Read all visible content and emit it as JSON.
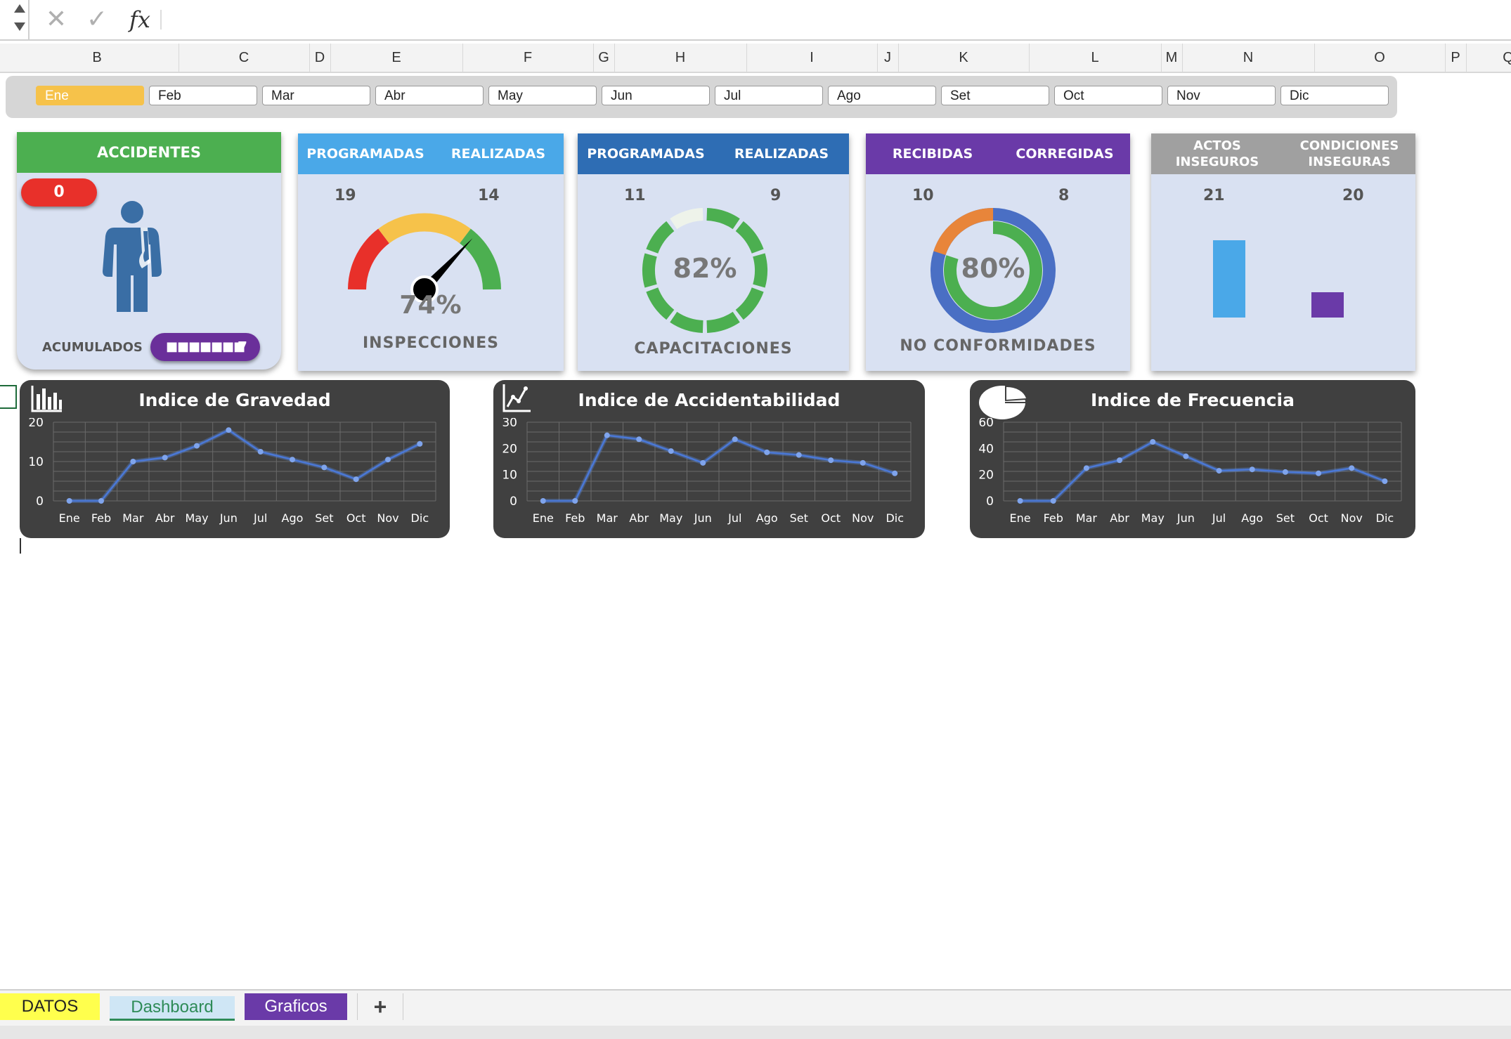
{
  "formula_bar": {
    "cancel_icon": "x-icon",
    "enter_icon": "check-icon",
    "fx_label": "fx",
    "content": ""
  },
  "columns": [
    "B",
    "C",
    "D",
    "E",
    "F",
    "G",
    "H",
    "I",
    "J",
    "K",
    "L",
    "M",
    "N",
    "O",
    "P",
    "Q"
  ],
  "months": [
    "Ene",
    "Feb",
    "Mar",
    "Abr",
    "May",
    "Jun",
    "Jul",
    "Ago",
    "Set",
    "Oct",
    "Nov",
    "Dic"
  ],
  "selected_month": "Ene",
  "cards": {
    "accidentes": {
      "title": "ACCIDENTES",
      "count": "0",
      "footer_label": "ACUMULADOS",
      "accumulated_value": "7",
      "accumulated_bar": "■■■■■■■",
      "colors": {
        "header": "#4caf50",
        "badge": "#e8302a",
        "pill": "#6a2f9a",
        "figure": "#3a6ea5"
      }
    },
    "inspecciones": {
      "left_header": "PROGRAMADAS",
      "right_header": "REALIZADAS",
      "programadas": "19",
      "realizadas": "14",
      "percent": "74%",
      "label": "INSPECCIONES",
      "gauge_fraction": 0.74,
      "colors": {
        "header": "#4aa8e8"
      }
    },
    "capacitaciones": {
      "left_header": "PROGRAMADAS",
      "right_header": "REALIZADAS",
      "programadas": "11",
      "realizadas": "9",
      "percent": "82%",
      "label": "CAPACITACIONES",
      "fraction": 0.82,
      "colors": {
        "header": "#2e6db4",
        "ring": "#4caf50"
      }
    },
    "no_conformidades": {
      "left_header": "RECIBIDAS",
      "right_header": "CORREGIDAS",
      "recibidas": "10",
      "corregidas": "8",
      "percent": "80%",
      "label": "NO CONFORMIDADES",
      "fraction": 0.8,
      "colors": {
        "header": "#6a3aa8",
        "outer": "#4a6fc4",
        "inner": "#4caf50",
        "rest": "#e8853a"
      }
    },
    "actos": {
      "left_header": "ACTOS INSEGUROS",
      "right_header_line1": "CONDICIONES",
      "right_header_line2": "INSEGURAS",
      "actos": "21",
      "condiciones": "20",
      "colors": {
        "header": "#a0a0a0",
        "bar_left": "#4aa8e8",
        "bar_right": "#6a3aa8"
      }
    }
  },
  "chart_data": [
    {
      "type": "line",
      "title": "Indice de Gravedad",
      "categories": [
        "Ene",
        "Feb",
        "Mar",
        "Abr",
        "May",
        "Jun",
        "Jul",
        "Ago",
        "Set",
        "Oct",
        "Nov",
        "Dic"
      ],
      "values": [
        0,
        0,
        10,
        11,
        14,
        18,
        12.5,
        10.5,
        8.5,
        5.5,
        10.5,
        14.5
      ],
      "ylim": [
        0,
        20
      ],
      "yticks": [
        "0",
        "10",
        "20"
      ],
      "grid": true
    },
    {
      "type": "line",
      "title": "Indice de Accidentabilidad",
      "categories": [
        "Ene",
        "Feb",
        "Mar",
        "Abr",
        "May",
        "Jun",
        "Jul",
        "Ago",
        "Set",
        "Oct",
        "Nov",
        "Dic"
      ],
      "values": [
        0,
        0,
        25,
        23.5,
        19,
        14.5,
        23.5,
        18.5,
        17.5,
        15.5,
        14.5,
        10.5
      ],
      "ylim": [
        0,
        30
      ],
      "yticks": [
        "0",
        "10",
        "20",
        "30"
      ],
      "grid": true
    },
    {
      "type": "line",
      "title": "Indice de Frecuencia",
      "categories": [
        "Ene",
        "Feb",
        "Mar",
        "Abr",
        "May",
        "Jun",
        "Jul",
        "Ago",
        "Set",
        "Oct",
        "Nov",
        "Dic"
      ],
      "values": [
        0,
        0,
        25,
        31,
        45,
        34,
        23,
        24,
        22,
        21,
        25,
        15
      ],
      "ylim": [
        0,
        60
      ],
      "yticks": [
        "0",
        "20",
        "40",
        "60"
      ],
      "grid": true
    }
  ],
  "chart_icons": [
    "bar-chart-icon",
    "line-chart-icon",
    "pie-chart-icon"
  ],
  "sheet_tabs": [
    {
      "label": "DATOS",
      "color": "#ffff4d",
      "text_color": "#222"
    },
    {
      "label": "Dashboard",
      "color": "#cfe6f5",
      "text_color": "#2e8b57"
    },
    {
      "label": "Graficos",
      "color": "#6a3aa8",
      "text_color": "#ffffff"
    }
  ],
  "add_sheet_label": "+"
}
